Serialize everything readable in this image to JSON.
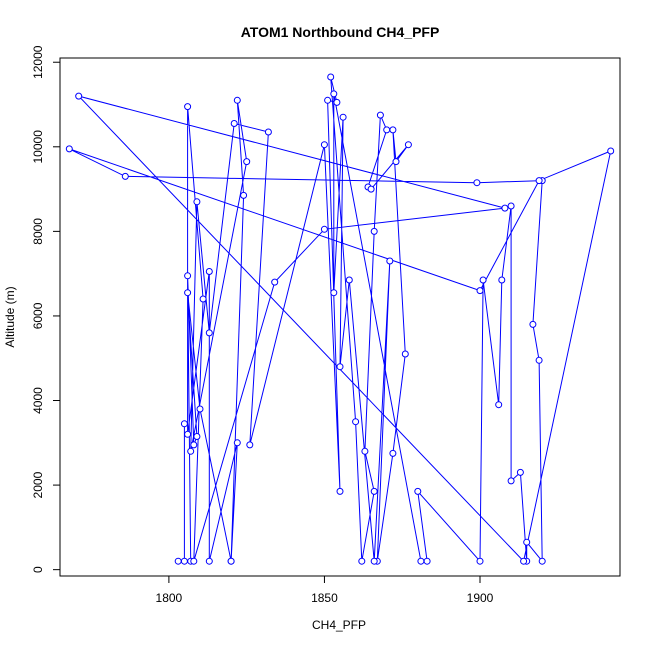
{
  "chart_data": {
    "type": "line",
    "title": "ATOM1 Northbound CH4_PFP",
    "xlabel": "CH4_PFP",
    "ylabel": "Altitude (m)",
    "xlim": [
      1765,
      1945
    ],
    "ylim": [
      -150,
      12100
    ],
    "x_ticks": [
      1800,
      1850,
      1900
    ],
    "y_ticks": [
      0,
      2000,
      4000,
      6000,
      8000,
      10000,
      12000
    ],
    "series": [
      {
        "color": "#0000ff",
        "marker": "open-circle",
        "x": [
          1805,
          1805,
          1803,
          1807,
          1806,
          1808,
          1809,
          1806,
          1810,
          1820,
          1824,
          1822,
          1825,
          1807,
          1809,
          1813,
          1821,
          1832,
          1826,
          1850,
          1855,
          1851,
          1854,
          1852,
          1860,
          1862,
          1866,
          1863,
          1866,
          1868,
          1870,
          1864,
          1865,
          1877,
          1873,
          1872,
          1876,
          1872,
          1867,
          1871,
          1866,
          1858,
          1855,
          1856,
          1853,
          1853,
          1881,
          1883,
          1880,
          1900,
          1901,
          1906,
          1907,
          1910,
          1910,
          1913,
          1915,
          1915,
          1920,
          1919,
          1917,
          1920,
          1899,
          1786,
          1768,
          1900,
          1919,
          1942,
          1914,
          1771,
          1908,
          1850,
          1834,
          1808,
          1811,
          1806,
          1806,
          1813,
          1813,
          1822,
          1820
        ],
        "y": [
          3450,
          200,
          200,
          200,
          6950,
          2950,
          3150,
          6550,
          3800,
          200,
          8850,
          11100,
          9650,
          2800,
          8700,
          5600,
          10550,
          10350,
          2950,
          10050,
          1850,
          11100,
          11050,
          11650,
          3500,
          200,
          1850,
          2800,
          8000,
          10750,
          10400,
          9050,
          9000,
          10050,
          9650,
          10400,
          5100,
          2750,
          200,
          7300,
          200,
          6850,
          4800,
          10700,
          6550,
          11250,
          200,
          200,
          1850,
          200,
          6850,
          3900,
          6850,
          8600,
          2100,
          2300,
          200,
          650,
          200,
          4950,
          5800,
          9200,
          9150,
          9300,
          9950,
          6600,
          9200,
          9900,
          200,
          11200,
          8550,
          8050,
          6800,
          200,
          6400,
          10950,
          3200,
          7050,
          200,
          3000,
          200
        ]
      }
    ]
  }
}
